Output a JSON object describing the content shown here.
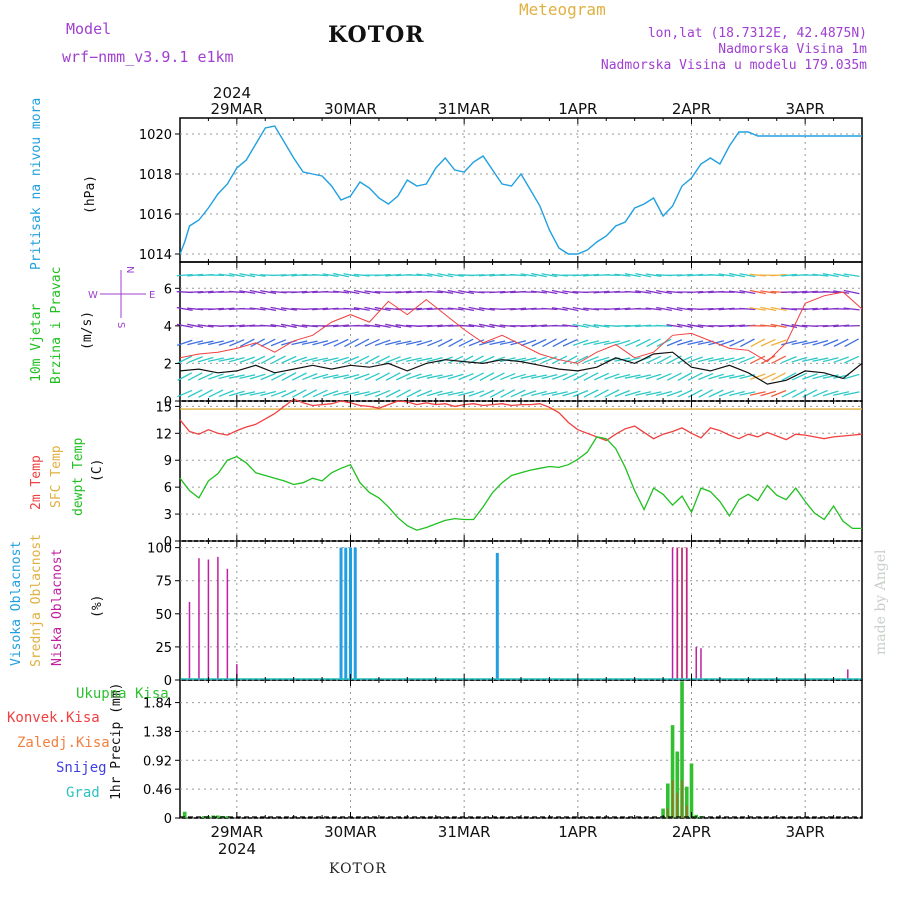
{
  "header": {
    "model_label": "Model",
    "model_name": "wrf−nmm_v3.9.1  e1km",
    "station": "KOTOR",
    "meteogram": "Meteogram",
    "lonlat": "lon,lat (18.7312E, 42.4875N)",
    "altitude": "Nadmorska Visina 1m",
    "model_altitude": "Nadmorska Visina u modelu 179.035m",
    "credit": "made by Angel",
    "footer_station": "KOTOR"
  },
  "colors": {
    "pressure": "#20a0e0",
    "temp2m": "#f04040",
    "sfc": "#e0b040",
    "dewpt": "#20c020",
    "high_cloud": "#20a0e0",
    "mid_cloud": "#e0b040",
    "low_cloud": "#c020a0",
    "total_precip": "#30c030",
    "conv_precip": "#f04040",
    "frozen_precip": "#f08040",
    "snow": "#4040e0",
    "hail": "#30c0c0"
  },
  "chart_data": [
    {
      "type": "line",
      "panel": "pressure",
      "ylabel_1": "Pritisak na nivou mora",
      "ylabel_2": "(hPa)",
      "ylim": [
        1013.6,
        1020.8
      ],
      "yticks": [
        1014,
        1016,
        1018,
        1020
      ],
      "xlim": [
        0,
        144
      ],
      "xtick_labels": [
        "29MAR",
        "30MAR",
        "31MAR",
        "1APR",
        "2APR",
        "3APR"
      ],
      "xtick_hours": [
        12,
        36,
        60,
        84,
        108,
        132
      ],
      "year_label": "2024",
      "grid": true,
      "x": [
        0,
        1,
        2,
        4,
        6,
        8,
        10,
        12,
        14,
        16,
        18,
        20,
        22,
        24,
        26,
        28,
        30,
        32,
        34,
        36,
        38,
        40,
        42,
        44,
        46,
        48,
        50,
        52,
        54,
        56,
        58,
        60,
        62,
        64,
        66,
        68,
        70,
        72,
        74,
        76,
        78,
        80,
        82,
        84,
        86,
        88,
        90,
        92,
        94,
        96,
        98,
        100,
        102,
        104,
        106,
        108,
        110,
        112,
        114,
        116,
        118,
        120,
        122,
        124,
        126,
        128,
        130,
        132,
        134,
        136,
        138,
        140,
        142,
        144
      ],
      "values": [
        1014.0,
        1014.6,
        1015.4,
        1015.7,
        1016.3,
        1017.0,
        1017.5,
        1018.3,
        1018.7,
        1019.5,
        1020.3,
        1020.4,
        1019.6,
        1018.8,
        1018.1,
        1018.0,
        1017.9,
        1017.4,
        1016.7,
        1016.9,
        1017.6,
        1017.3,
        1016.8,
        1016.5,
        1016.9,
        1017.7,
        1017.4,
        1017.5,
        1018.3,
        1018.8,
        1018.2,
        1018.1,
        1018.6,
        1018.9,
        1018.2,
        1017.5,
        1017.4,
        1018.0,
        1017.2,
        1016.4,
        1015.2,
        1014.3,
        1014.0,
        1014.0,
        1014.2,
        1014.6,
        1014.9,
        1015.4,
        1015.6,
        1016.3,
        1016.5,
        1016.8,
        1015.9,
        1016.4,
        1017.4,
        1017.8,
        1018.5,
        1018.8,
        1018.5,
        1019.4,
        1020.1,
        1020.1,
        1019.9,
        1019.9,
        1019.9,
        1019.9,
        1019.9,
        1019.9,
        1019.9,
        1019.9,
        1019.9,
        1019.9,
        1019.9,
        1019.9
      ]
    },
    {
      "type": "line",
      "panel": "wind",
      "ylabel_1": "10m Vjetar",
      "ylabel_2": "Brzina i Pravac",
      "ylabel_3": "(m/s)",
      "compass_n": "N",
      "compass_e": "E",
      "compass_w": "W",
      "compass_s": "S",
      "ylim": [
        0,
        7.4
      ],
      "yticks": [
        0,
        2,
        4,
        6
      ],
      "xlim": [
        0,
        144
      ],
      "grid": true,
      "x": [
        0,
        4,
        8,
        12,
        16,
        20,
        24,
        28,
        32,
        36,
        40,
        44,
        48,
        52,
        56,
        60,
        64,
        68,
        72,
        76,
        80,
        84,
        88,
        92,
        96,
        100,
        104,
        108,
        112,
        116,
        120,
        124,
        128,
        132,
        136,
        140,
        144
      ],
      "speed": [
        1.6,
        1.7,
        1.5,
        1.6,
        1.9,
        1.5,
        1.7,
        1.9,
        1.7,
        1.9,
        1.8,
        2.0,
        1.6,
        2.0,
        2.2,
        2.1,
        2.0,
        2.2,
        2.1,
        1.9,
        1.7,
        1.6,
        1.8,
        2.3,
        2.0,
        2.5,
        2.6,
        1.8,
        1.6,
        1.9,
        1.5,
        0.9,
        1.1,
        1.6,
        1.5,
        1.2,
        2.0
      ],
      "gust": [
        2.3,
        2.5,
        2.6,
        2.8,
        3.1,
        2.6,
        3.2,
        3.5,
        4.2,
        4.6,
        4.2,
        5.3,
        4.6,
        5.4,
        4.6,
        3.8,
        3.1,
        3.5,
        3.0,
        2.5,
        2.2,
        2.0,
        2.6,
        3.0,
        2.3,
        2.6,
        3.5,
        3.6,
        3.2,
        2.8,
        2.7,
        2.1,
        3.1,
        5.2,
        5.6,
        5.8,
        4.9
      ]
    },
    {
      "type": "line",
      "panel": "temperature",
      "ylabel_1": "2m Temp",
      "ylabel_2": "SFC Temp",
      "ylabel_3": "dewpt Temp",
      "ylabel_4": "(C)",
      "ylim": [
        0,
        15.6
      ],
      "yticks": [
        0,
        3,
        6,
        9,
        12,
        15
      ],
      "xlim": [
        0,
        144
      ],
      "grid": true,
      "sfc_temp": 14.7,
      "x": [
        0,
        2,
        4,
        6,
        8,
        10,
        12,
        14,
        16,
        18,
        20,
        22,
        24,
        26,
        28,
        30,
        32,
        34,
        36,
        38,
        40,
        42,
        44,
        46,
        48,
        50,
        52,
        54,
        56,
        58,
        60,
        62,
        64,
        66,
        68,
        70,
        72,
        74,
        76,
        78,
        80,
        82,
        84,
        86,
        88,
        90,
        92,
        94,
        96,
        98,
        100,
        102,
        104,
        106,
        108,
        110,
        112,
        114,
        116,
        118,
        120,
        122,
        124,
        126,
        128,
        130,
        132,
        134,
        136,
        138,
        140,
        142,
        144
      ],
      "temp2m": [
        13.5,
        12.2,
        11.9,
        12.4,
        12.0,
        11.8,
        12.3,
        12.7,
        13.0,
        13.6,
        14.2,
        15.0,
        15.8,
        15.4,
        15.1,
        15.2,
        15.3,
        15.6,
        15.4,
        15.1,
        15.0,
        14.8,
        15.2,
        15.6,
        15.5,
        15.2,
        15.4,
        15.2,
        15.3,
        15.0,
        15.2,
        15.3,
        15.1,
        15.2,
        15.3,
        15.1,
        15.2,
        15.2,
        15.3,
        14.9,
        14.3,
        13.2,
        12.4,
        12.0,
        11.6,
        11.2,
        11.9,
        12.5,
        12.8,
        12.1,
        11.4,
        11.9,
        12.2,
        12.6,
        12.0,
        11.5,
        12.6,
        12.3,
        11.8,
        11.4,
        11.9,
        11.6,
        12.1,
        11.7,
        11.3,
        11.9,
        11.8,
        11.6,
        11.4,
        11.6,
        11.7,
        11.8,
        11.9
      ],
      "dewpt": [
        7.0,
        5.6,
        4.8,
        6.7,
        7.5,
        9.0,
        9.4,
        8.7,
        7.6,
        7.3,
        7.0,
        6.7,
        6.3,
        6.5,
        7.0,
        6.7,
        7.6,
        8.1,
        8.5,
        6.5,
        5.4,
        4.8,
        3.8,
        2.6,
        1.7,
        1.2,
        1.5,
        1.9,
        2.3,
        2.5,
        2.4,
        2.4,
        3.8,
        5.4,
        6.5,
        7.3,
        7.6,
        7.9,
        8.1,
        8.3,
        8.2,
        8.5,
        9.1,
        9.9,
        11.6,
        11.4,
        10.3,
        8.2,
        5.6,
        3.5,
        5.9,
        5.2,
        4.0,
        5.0,
        3.2,
        5.9,
        5.5,
        4.4,
        2.8,
        4.6,
        5.2,
        4.5,
        6.2,
        5.1,
        4.6,
        5.9,
        4.4,
        3.1,
        2.4,
        3.9,
        2.2,
        1.4,
        1.4
      ]
    },
    {
      "type": "bar",
      "panel": "clouds",
      "ylabel_1": "Visoka Oblacnost",
      "ylabel_2": "Srednja Oblacnost",
      "ylabel_3": "Niska Oblacnost",
      "ylabel_4": "(%)",
      "ylim": [
        0,
        105
      ],
      "yticks": [
        0,
        25,
        50,
        75,
        100
      ],
      "xlim": [
        0,
        144
      ],
      "grid": true,
      "series": [
        {
          "key": "high",
          "x": [
            34,
            35,
            36,
            37,
            67
          ],
          "values": [
            100,
            100,
            100,
            100,
            96
          ]
        },
        {
          "key": "mid",
          "x": [
            105,
            106,
            107
          ],
          "values": [
            100,
            100,
            100
          ]
        },
        {
          "key": "low",
          "x": [
            2,
            4,
            6,
            8,
            10,
            12,
            104,
            105,
            106,
            107,
            109,
            110,
            141
          ],
          "values": [
            59,
            92,
            91,
            93,
            84,
            12,
            100,
            100,
            100,
            100,
            25,
            24,
            8
          ]
        }
      ]
    },
    {
      "type": "bar",
      "panel": "precipitation",
      "legend": [
        "Ukupna Kisa",
        "Konvek.Kisa",
        "Zaledj.Kisa",
        "Snijeg",
        "Grad"
      ],
      "ylabel": "1hr Precip (mm)",
      "ylim": [
        0,
        2.2
      ],
      "yticks": [
        "0",
        "0.46",
        "0.92",
        "1.38",
        "1.84"
      ],
      "ytick_values": [
        0,
        0.46,
        0.92,
        1.38,
        1.84
      ],
      "xlim": [
        0,
        144
      ],
      "grid": true,
      "total_x": [
        1,
        5,
        6,
        7,
        8,
        9,
        10,
        102,
        103,
        104,
        105,
        106,
        107,
        108,
        109,
        110
      ],
      "total": [
        0.1,
        0.03,
        0.03,
        0.04,
        0.04,
        0.03,
        0.03,
        0.15,
        0.55,
        1.48,
        1.06,
        2.18,
        0.5,
        0.87,
        0.05,
        0.03
      ],
      "conv_x": [
        103,
        104,
        105,
        106,
        107
      ],
      "conv": [
        0.15,
        0.6,
        0.4,
        0.6,
        0.2
      ]
    }
  ]
}
